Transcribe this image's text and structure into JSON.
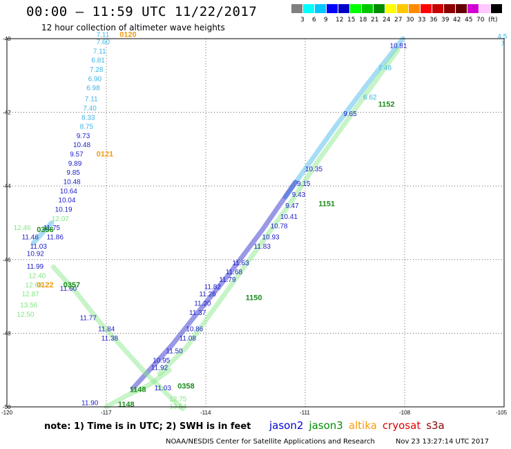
{
  "header": {
    "title": "00:00 – 11:59 UTC 11/22/2017",
    "subtitle": "12 hour collection of altimeter wave heights"
  },
  "color_scale": {
    "colors": [
      "#808080",
      "#00ffff",
      "#00c8ff",
      "#0000ff",
      "#0000c8",
      "#00ff00",
      "#00c800",
      "#008c00",
      "#ffff00",
      "#ffc800",
      "#ff8c00",
      "#ff0000",
      "#c80000",
      "#8c0000",
      "#640000",
      "#d200d2",
      "#ffc8ff",
      "#000000"
    ],
    "labels": [
      "3",
      "6",
      "9",
      "12",
      "15",
      "18",
      "21",
      "24",
      "27",
      "30",
      "33",
      "36",
      "39",
      "42",
      "45",
      "70",
      "(ft)"
    ]
  },
  "axes": {
    "lat_labels": [
      "-40",
      "-42",
      "-44",
      "-46",
      "-48",
      "-50"
    ],
    "lon_labels": [
      "-120",
      "-117",
      "-114",
      "-111",
      "-108",
      "-105"
    ]
  },
  "map_data": {
    "missions": [
      {
        "name": "jason2",
        "color": "#0000cc"
      },
      {
        "name": "jason3",
        "color": "#008c00"
      },
      {
        "name": "altika",
        "color": "#ff9900"
      },
      {
        "name": "cryosat",
        "color": "#dd0000"
      },
      {
        "name": "s3a",
        "color": "#880000"
      }
    ],
    "readings": [
      {
        "t": "7.11",
        "lon": -117.3,
        "lat": -39.95,
        "c": "#3cb4e6"
      },
      {
        "t": "7.60",
        "lon": -117.3,
        "lat": -40.15,
        "c": "#3cb4e6"
      },
      {
        "t": "7.11",
        "lon": -117.4,
        "lat": -40.4,
        "c": "#3cb4e6"
      },
      {
        "t": "6.81",
        "lon": -117.45,
        "lat": -40.65,
        "c": "#3cb4e6"
      },
      {
        "t": "7.28",
        "lon": -117.5,
        "lat": -40.9,
        "c": "#3cb4e6"
      },
      {
        "t": "6.90",
        "lon": -117.55,
        "lat": -41.15,
        "c": "#3cb4e6"
      },
      {
        "t": "6.98",
        "lon": -117.6,
        "lat": -41.4,
        "c": "#3cb4e6"
      },
      {
        "t": "7.11",
        "lon": -117.65,
        "lat": -41.7,
        "c": "#3cb4e6"
      },
      {
        "t": "7.40",
        "lon": -117.7,
        "lat": -41.95,
        "c": "#3cb4e6"
      },
      {
        "t": "8.33",
        "lon": -117.75,
        "lat": -42.2,
        "c": "#3cb4e6"
      },
      {
        "t": "8.75",
        "lon": -117.8,
        "lat": -42.45,
        "c": "#3cb4e6"
      },
      {
        "t": "9.73",
        "lon": -117.9,
        "lat": -42.7,
        "c": "#1c1cc8"
      },
      {
        "t": "10.48",
        "lon": -118.0,
        "lat": -42.95,
        "c": "#1c1cc8"
      },
      {
        "t": "9.57",
        "lon": -118.1,
        "lat": -43.2,
        "c": "#1c1cc8"
      },
      {
        "t": "9.89",
        "lon": -118.15,
        "lat": -43.45,
        "c": "#1c1cc8"
      },
      {
        "t": "9.85",
        "lon": -118.2,
        "lat": -43.7,
        "c": "#1c1cc8"
      },
      {
        "t": "10.48",
        "lon": -118.3,
        "lat": -43.95,
        "c": "#1c1cc8"
      },
      {
        "t": "10.64",
        "lon": -118.4,
        "lat": -44.2,
        "c": "#1c1cc8"
      },
      {
        "t": "10.04",
        "lon": -118.45,
        "lat": -44.45,
        "c": "#1c1cc8"
      },
      {
        "t": "10.19",
        "lon": -118.55,
        "lat": -44.7,
        "c": "#1c1cc8"
      },
      {
        "t": "12.07",
        "lon": -118.65,
        "lat": -44.95,
        "c": "#82e682"
      },
      {
        "t": "12.46",
        "lon": -119.8,
        "lat": -45.2,
        "c": "#82e682"
      },
      {
        "t": "11.75",
        "lon": -118.9,
        "lat": -45.2,
        "c": "#1c1cc8"
      },
      {
        "t": "11.46",
        "lon": -119.55,
        "lat": -45.45,
        "c": "#1c1cc8"
      },
      {
        "t": "11.86",
        "lon": -118.8,
        "lat": -45.45,
        "c": "#1c1cc8"
      },
      {
        "t": "11.03",
        "lon": -119.3,
        "lat": -45.7,
        "c": "#1c1cc8"
      },
      {
        "t": "10.92",
        "lon": -119.4,
        "lat": -45.9,
        "c": "#1c1cc8"
      },
      {
        "t": "11.99",
        "lon": -119.4,
        "lat": -46.25,
        "c": "#1c1cc8"
      },
      {
        "t": "12.40",
        "lon": -119.35,
        "lat": -46.5,
        "c": "#82e682"
      },
      {
        "t": "12.66",
        "lon": -119.45,
        "lat": -46.75,
        "c": "#82e682"
      },
      {
        "t": "12.87",
        "lon": -119.55,
        "lat": -47.0,
        "c": "#82e682"
      },
      {
        "t": "13.56",
        "lon": -119.6,
        "lat": -47.3,
        "c": "#82e682"
      },
      {
        "t": "12.50",
        "lon": -119.7,
        "lat": -47.55,
        "c": "#82e682"
      },
      {
        "t": "11.60",
        "lon": -118.4,
        "lat": -46.85,
        "c": "#1c1cc8"
      },
      {
        "t": "11.77",
        "lon": -117.8,
        "lat": -47.65,
        "c": "#1c1cc8"
      },
      {
        "t": "11.84",
        "lon": -117.25,
        "lat": -47.95,
        "c": "#1c1cc8"
      },
      {
        "t": "11.38",
        "lon": -117.15,
        "lat": -48.2,
        "c": "#1c1cc8"
      },
      {
        "t": "11.92",
        "lon": -115.65,
        "lat": -49.0,
        "c": "#1c1cc8"
      },
      {
        "t": "11.90",
        "lon": -117.75,
        "lat": -49.95,
        "c": "#1c1cc8"
      },
      {
        "t": "10.95",
        "lon": -115.6,
        "lat": -48.8,
        "c": "#1c1cc8"
      },
      {
        "t": "11.50",
        "lon": -115.2,
        "lat": -48.55,
        "c": "#1c1cc8"
      },
      {
        "t": "11.08",
        "lon": -114.8,
        "lat": -48.2,
        "c": "#1c1cc8"
      },
      {
        "t": "10.86",
        "lon": -114.6,
        "lat": -47.95,
        "c": "#1c1cc8"
      },
      {
        "t": "11.37",
        "lon": -114.5,
        "lat": -47.5,
        "c": "#1c1cc8"
      },
      {
        "t": "11.20",
        "lon": -114.35,
        "lat": -47.25,
        "c": "#1c1cc8"
      },
      {
        "t": "11.26",
        "lon": -114.2,
        "lat": -47.0,
        "c": "#1c1cc8"
      },
      {
        "t": "11.82",
        "lon": -114.05,
        "lat": -46.8,
        "c": "#1c1cc8"
      },
      {
        "t": "11.79",
        "lon": -113.6,
        "lat": -46.6,
        "c": "#1c1cc8"
      },
      {
        "t": "11.68",
        "lon": -113.4,
        "lat": -46.4,
        "c": "#1c1cc8"
      },
      {
        "t": "11.63",
        "lon": -113.2,
        "lat": -46.15,
        "c": "#1c1cc8"
      },
      {
        "t": "11.83",
        "lon": -112.55,
        "lat": -45.7,
        "c": "#1c1cc8"
      },
      {
        "t": "10.93",
        "lon": -112.3,
        "lat": -45.45,
        "c": "#1c1cc8"
      },
      {
        "t": "10.78",
        "lon": -112.05,
        "lat": -45.15,
        "c": "#1c1cc8"
      },
      {
        "t": "10.41",
        "lon": -111.75,
        "lat": -44.9,
        "c": "#1c1cc8"
      },
      {
        "t": "9.47",
        "lon": -111.6,
        "lat": -44.6,
        "c": "#1c1cc8"
      },
      {
        "t": "9.43",
        "lon": -111.4,
        "lat": -44.3,
        "c": "#1c1cc8"
      },
      {
        "t": "9.15",
        "lon": -111.25,
        "lat": -44.0,
        "c": "#1c1cc8"
      },
      {
        "t": "10.35",
        "lon": -111.0,
        "lat": -43.6,
        "c": "#1c1cc8"
      },
      {
        "t": "9.65",
        "lon": -109.85,
        "lat": -42.1,
        "c": "#1c1cc8"
      },
      {
        "t": "10.81",
        "lon": -108.45,
        "lat": -40.25,
        "c": "#1c1cc8"
      },
      {
        "t": "4.5",
        "lon": -105.2,
        "lat": -40.0,
        "c": "#3cb4e6"
      },
      {
        "t": "7",
        "lon": -105.1,
        "lat": -40.2,
        "c": "#3cb4e6"
      },
      {
        "t": "7.48",
        "lon": -108.8,
        "lat": -40.85,
        "c": "#3cb4e6"
      },
      {
        "t": "6.62",
        "lon": -109.25,
        "lat": -41.65,
        "c": "#3cb4e6"
      },
      {
        "t": "0120",
        "lon": -116.6,
        "lat": -39.95,
        "c": "#ee9911"
      },
      {
        "t": "0121",
        "lon": -117.3,
        "lat": -43.2,
        "c": "#ee9911"
      },
      {
        "t": "0122",
        "lon": -119.1,
        "lat": -46.75,
        "c": "#ee9911"
      },
      {
        "t": "1152",
        "lon": -108.8,
        "lat": -41.85,
        "c": "#1c8c1c"
      },
      {
        "t": "1151",
        "lon": -110.6,
        "lat": -44.55,
        "c": "#1c8c1c"
      },
      {
        "t": "1150",
        "lon": -112.8,
        "lat": -47.1,
        "c": "#1c8c1c"
      },
      {
        "t": "0358",
        "lon": -114.85,
        "lat": -49.5,
        "c": "#1c8c1c"
      },
      {
        "t": "0357",
        "lon": -118.3,
        "lat": -46.75,
        "c": "#1c8c1c"
      },
      {
        "t": "0356",
        "lon": -119.1,
        "lat": -45.25,
        "c": "#1c8c1c"
      },
      {
        "t": "1148",
        "lon": -116.3,
        "lat": -49.6,
        "c": "#1c8c1c"
      },
      {
        "t": "1148",
        "lon": -116.65,
        "lat": -50.0,
        "c": "#1c8c1c"
      },
      {
        "t": "11.03",
        "lon": -115.55,
        "lat": -49.55,
        "c": "#1c1cc8"
      },
      {
        "t": "12.75",
        "lon": -115.1,
        "lat": -49.85,
        "c": "#82e682"
      },
      {
        "t": "13.54",
        "lon": -115.1,
        "lat": -50.05,
        "c": "#82e682"
      }
    ],
    "tracks": [
      {
        "color": "#3cb4e6",
        "pts": [
          [
            -108.05,
            -40.0
          ],
          [
            -109.1,
            -41.2
          ],
          [
            -110.1,
            -42.4
          ],
          [
            -111.05,
            -43.6
          ],
          [
            -111.6,
            -44.3
          ]
        ]
      },
      {
        "color": "#1c1cc8",
        "pts": [
          [
            -111.3,
            -43.9
          ],
          [
            -112.3,
            -45.2
          ],
          [
            -113.3,
            -46.4
          ],
          [
            -114.3,
            -47.5
          ],
          [
            -115.0,
            -48.3
          ],
          [
            -115.8,
            -49.1
          ],
          [
            -116.2,
            -49.5
          ]
        ]
      },
      {
        "color": "#82e682",
        "pts": [
          [
            -108.2,
            -40.3
          ],
          [
            -109.0,
            -41.3
          ],
          [
            -109.8,
            -42.3
          ],
          [
            -110.6,
            -43.3
          ],
          [
            -111.4,
            -44.4
          ],
          [
            -112.2,
            -45.4
          ],
          [
            -113.0,
            -46.4
          ],
          [
            -113.8,
            -47.4
          ],
          [
            -114.6,
            -48.4
          ],
          [
            -115.4,
            -49.1
          ]
        ]
      },
      {
        "color": "#82e682",
        "pts": [
          [
            -118.6,
            -46.2
          ],
          [
            -117.9,
            -46.9
          ],
          [
            -117.2,
            -47.7
          ],
          [
            -116.5,
            -48.4
          ],
          [
            -115.8,
            -49.1
          ],
          [
            -115.0,
            -49.8
          ],
          [
            -114.7,
            -50.05
          ]
        ]
      },
      {
        "color": "#82e682",
        "pts": [
          [
            -115.1,
            -49.0
          ],
          [
            -115.7,
            -49.4
          ],
          [
            -116.4,
            -49.7
          ],
          [
            -117.0,
            -50.0
          ]
        ]
      },
      {
        "color": "#3cb4e6",
        "pts": [
          [
            -118.65,
            -45.0
          ],
          [
            -118.9,
            -45.25
          ],
          [
            -119.2,
            -45.55
          ]
        ]
      }
    ]
  }
}
